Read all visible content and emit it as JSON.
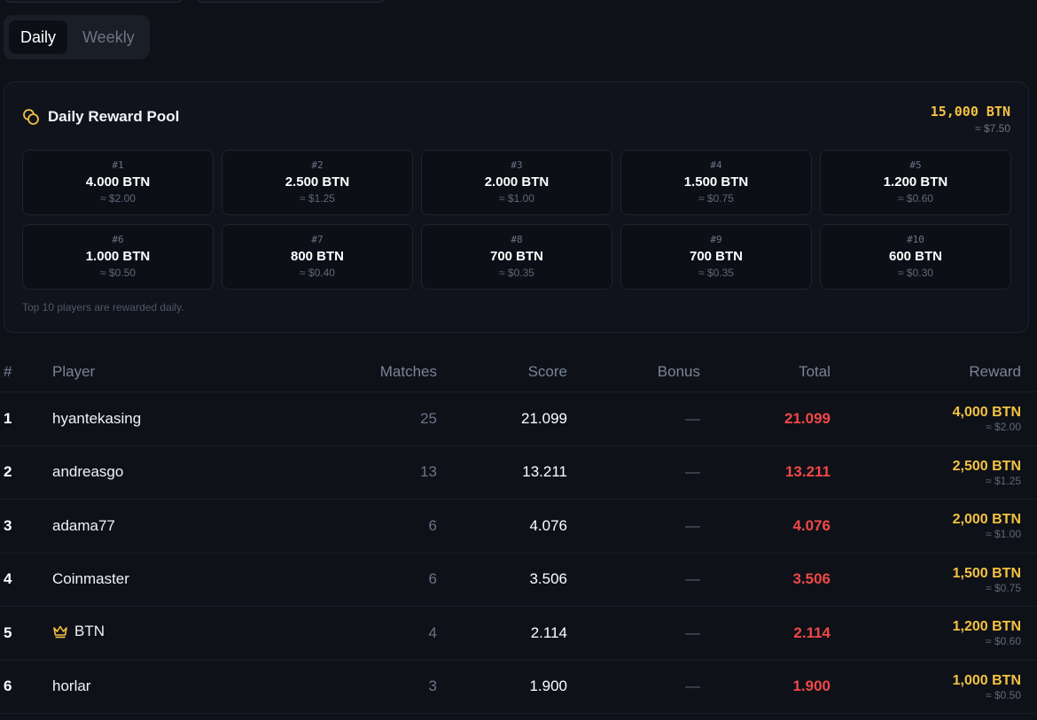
{
  "tabs": [
    {
      "label": "Daily",
      "active": true
    },
    {
      "label": "Weekly",
      "active": false
    }
  ],
  "pool": {
    "icon": "coins-icon",
    "title": "Daily Reward Pool",
    "total_amount": "15,000 BTN",
    "total_usd": "≈ $7.50",
    "note": "Top 10 players are rewarded daily.",
    "cells": [
      {
        "rank": "#1",
        "amount": "4.000 BTN",
        "usd": "≈ $2.00"
      },
      {
        "rank": "#2",
        "amount": "2.500 BTN",
        "usd": "≈ $1.25"
      },
      {
        "rank": "#3",
        "amount": "2.000 BTN",
        "usd": "≈ $1.00"
      },
      {
        "rank": "#4",
        "amount": "1.500 BTN",
        "usd": "≈ $0.75"
      },
      {
        "rank": "#5",
        "amount": "1.200 BTN",
        "usd": "≈ $0.60"
      },
      {
        "rank": "#6",
        "amount": "1.000 BTN",
        "usd": "≈ $0.50"
      },
      {
        "rank": "#7",
        "amount": "800 BTN",
        "usd": "≈ $0.40"
      },
      {
        "rank": "#8",
        "amount": "700 BTN",
        "usd": "≈ $0.35"
      },
      {
        "rank": "#9",
        "amount": "700 BTN",
        "usd": "≈ $0.35"
      },
      {
        "rank": "#10",
        "amount": "600 BTN",
        "usd": "≈ $0.30"
      }
    ]
  },
  "table": {
    "headers": {
      "rank": "#",
      "player": "Player",
      "matches": "Matches",
      "score": "Score",
      "bonus": "Bonus",
      "total": "Total",
      "reward": "Reward"
    },
    "rows": [
      {
        "rank": "1",
        "player": "hyantekasing",
        "crown": false,
        "matches": "25",
        "score": "21.099",
        "bonus": "—",
        "total": "21.099",
        "reward": "4,000 BTN",
        "reward_usd": "≈ $2.00"
      },
      {
        "rank": "2",
        "player": "andreasgo",
        "crown": false,
        "matches": "13",
        "score": "13.211",
        "bonus": "—",
        "total": "13.211",
        "reward": "2,500 BTN",
        "reward_usd": "≈ $1.25"
      },
      {
        "rank": "3",
        "player": "adama77",
        "crown": false,
        "matches": "6",
        "score": "4.076",
        "bonus": "—",
        "total": "4.076",
        "reward": "2,000 BTN",
        "reward_usd": "≈ $1.00"
      },
      {
        "rank": "4",
        "player": "Coinmaster",
        "crown": false,
        "matches": "6",
        "score": "3.506",
        "bonus": "—",
        "total": "3.506",
        "reward": "1,500 BTN",
        "reward_usd": "≈ $0.75"
      },
      {
        "rank": "5",
        "player": "BTN",
        "crown": true,
        "matches": "4",
        "score": "2.114",
        "bonus": "—",
        "total": "2.114",
        "reward": "1,200 BTN",
        "reward_usd": "≈ $0.60"
      },
      {
        "rank": "6",
        "player": "horlar",
        "crown": false,
        "matches": "3",
        "score": "1.900",
        "bonus": "—",
        "total": "1.900",
        "reward": "1,000 BTN",
        "reward_usd": "≈ $0.50"
      }
    ]
  },
  "colors": {
    "background": "#0e1118",
    "accent_gold": "#f5c242",
    "total_red": "#f04848",
    "muted": "#6b7386"
  }
}
